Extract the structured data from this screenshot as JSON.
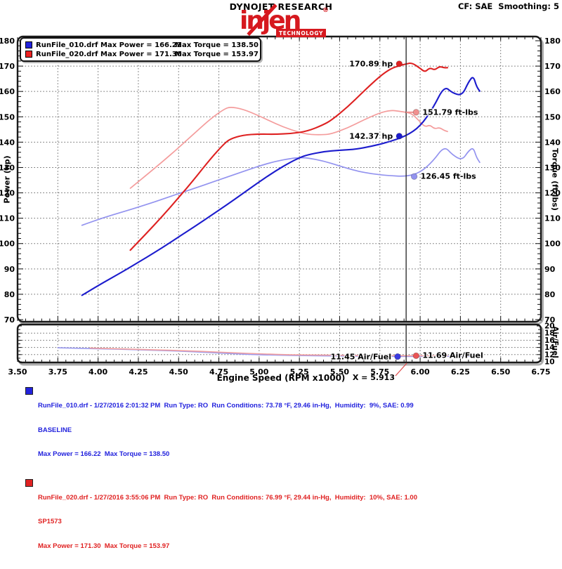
{
  "header": {
    "title": "DYNOJET RESEARCH",
    "correction": "CF: SAE  Smoothing: 5",
    "logo": {
      "word": "injen",
      "registered": "®",
      "sub": "TECHNOLOGY"
    }
  },
  "legend": {
    "rows": [
      {
        "file_power": "RunFile_010.drf Max Power = 166.22",
        "torque": "Max Torque = 138.50",
        "color": "#2222dd"
      },
      {
        "file_power": "RunFile_020.drf Max Power = 171.30",
        "torque": "Max Torque = 153.97",
        "color": "#ee2222"
      }
    ]
  },
  "axes": {
    "x_label": "Engine Speed (RPM x1000)",
    "y_left_label": "Power (hp)",
    "y_right_label": "Torque (ft-lbs)",
    "af_label": "Air/Fuel"
  },
  "cursor": {
    "label": "X = 5.913",
    "x": 5.913
  },
  "annotations": [
    {
      "text": "170.89 hp",
      "chart": "main",
      "rpm": 5.87,
      "value": 170.89,
      "side": "left",
      "color": "#de2121"
    },
    {
      "text": "151.79 ft-lbs",
      "chart": "main",
      "rpm": 5.975,
      "value": 151.79,
      "side": "right",
      "color": "#f0908f",
      "leader_from": 5.913
    },
    {
      "text": "142.37 hp",
      "chart": "main",
      "rpm": 5.87,
      "value": 142.37,
      "side": "left",
      "color": "#1c1ccd"
    },
    {
      "text": "126.45 ft-lbs",
      "chart": "main",
      "rpm": 5.963,
      "value": 126.45,
      "side": "right",
      "color": "#9393ef"
    },
    {
      "text": "11.45 Air/Fuel",
      "chart": "af",
      "rpm": 5.86,
      "value": 11.45,
      "side": "left",
      "color": "#3b3be0"
    },
    {
      "text": "11.69 Air/Fuel",
      "chart": "af",
      "rpm": 5.975,
      "value": 11.69,
      "side": "right",
      "color": "#e85555"
    }
  ],
  "chart_data": [
    {
      "type": "line",
      "panel": "main",
      "x_axis": {
        "label": "Engine Speed (RPM x1000)",
        "min": 3.5,
        "max": 6.75,
        "tick_step": 0.25,
        "ticks": [
          "3.50",
          "3.75",
          "4.00",
          "4.25",
          "4.50",
          "4.75",
          "5.00",
          "5.25",
          "5.50",
          "5.75",
          "6.00",
          "6.25",
          "6.50",
          "6.75"
        ]
      },
      "y_axis": {
        "left_label": "Power (hp)",
        "right_label": "Torque (ft-lbs)",
        "min": 70,
        "max": 180,
        "ticks": [
          "180",
          "170",
          "160",
          "150",
          "140",
          "130",
          "120",
          "110",
          "100",
          "90",
          "80",
          "70"
        ]
      },
      "grid": "dotted",
      "series": [
        {
          "name": "RunFile_010 Torque",
          "color": "#9393ef",
          "width": 1.7,
          "points": [
            [
              3.9,
              107.2
            ],
            [
              4.0,
              109.5
            ],
            [
              4.1,
              111.5
            ],
            [
              4.2,
              113.4
            ],
            [
              4.3,
              115.4
            ],
            [
              4.4,
              117.5
            ],
            [
              4.5,
              119.7
            ],
            [
              4.6,
              121.8
            ],
            [
              4.7,
              124.0
            ],
            [
              4.8,
              126.2
            ],
            [
              4.9,
              128.4
            ],
            [
              5.0,
              130.6
            ],
            [
              5.1,
              132.4
            ],
            [
              5.2,
              133.6
            ],
            [
              5.252,
              133.9
            ],
            [
              5.3,
              133.8
            ],
            [
              5.4,
              132.6
            ],
            [
              5.5,
              130.6
            ],
            [
              5.6,
              128.7
            ],
            [
              5.7,
              127.5
            ],
            [
              5.8,
              126.8
            ],
            [
              5.913,
              126.45
            ],
            [
              6.0,
              128.0
            ],
            [
              6.08,
              132.5
            ],
            [
              6.15,
              138.5
            ],
            [
              6.2,
              135.0
            ],
            [
              6.26,
              132.8
            ],
            [
              6.3,
              136.5
            ],
            [
              6.33,
              137.9
            ],
            [
              6.35,
              134.0
            ],
            [
              6.37,
              132.0
            ]
          ]
        },
        {
          "name": "RunFile_020 Torque",
          "color": "#f49c9c",
          "width": 1.7,
          "points": [
            [
              4.2,
              121.8
            ],
            [
              4.3,
              127.0
            ],
            [
              4.4,
              132.3
            ],
            [
              4.5,
              137.8
            ],
            [
              4.6,
              143.6
            ],
            [
              4.7,
              149.3
            ],
            [
              4.78,
              152.9
            ],
            [
              4.82,
              153.97
            ],
            [
              4.9,
              153.0
            ],
            [
              5.0,
              150.4
            ],
            [
              5.1,
              147.3
            ],
            [
              5.2,
              144.8
            ],
            [
              5.3,
              143.0
            ],
            [
              5.4,
              142.9
            ],
            [
              5.45,
              143.3
            ],
            [
              5.55,
              145.6
            ],
            [
              5.65,
              148.8
            ],
            [
              5.75,
              151.6
            ],
            [
              5.82,
              152.6
            ],
            [
              5.87,
              152.2
            ],
            [
              5.913,
              151.79
            ],
            [
              5.95,
              151.2
            ],
            [
              6.0,
              148.0
            ],
            [
              6.03,
              146.0
            ],
            [
              6.06,
              146.8
            ],
            [
              6.09,
              145.2
            ],
            [
              6.12,
              145.8
            ],
            [
              6.15,
              144.6
            ],
            [
              6.17,
              144.2
            ]
          ]
        },
        {
          "name": "RunFile_010 Power",
          "color": "#1c1ccd",
          "width": 2.1,
          "points": [
            [
              3.9,
              79.6
            ],
            [
              4.0,
              83.4
            ],
            [
              4.1,
              87.0
            ],
            [
              4.2,
              90.7
            ],
            [
              4.3,
              94.5
            ],
            [
              4.4,
              98.4
            ],
            [
              4.5,
              102.6
            ],
            [
              4.6,
              106.7
            ],
            [
              4.7,
              111.0
            ],
            [
              4.8,
              115.3
            ],
            [
              4.9,
              119.8
            ],
            [
              5.0,
              124.3
            ],
            [
              5.1,
              128.6
            ],
            [
              5.2,
              132.3
            ],
            [
              5.252,
              133.9
            ],
            [
              5.3,
              135.0
            ],
            [
              5.4,
              136.3
            ],
            [
              5.5,
              136.8
            ],
            [
              5.6,
              137.2
            ],
            [
              5.7,
              138.4
            ],
            [
              5.8,
              140.0
            ],
            [
              5.913,
              142.4
            ],
            [
              6.0,
              146.2
            ],
            [
              6.08,
              153.4
            ],
            [
              6.15,
              162.2
            ],
            [
              6.2,
              159.4
            ],
            [
              6.26,
              158.3
            ],
            [
              6.3,
              163.7
            ],
            [
              6.33,
              166.2
            ],
            [
              6.35,
              162.0
            ],
            [
              6.37,
              160.1
            ]
          ]
        },
        {
          "name": "RunFile_020 Power",
          "color": "#de2121",
          "width": 2.1,
          "points": [
            [
              4.2,
              97.4
            ],
            [
              4.3,
              104.0
            ],
            [
              4.4,
              110.8
            ],
            [
              4.5,
              118.1
            ],
            [
              4.6,
              125.6
            ],
            [
              4.7,
              133.6
            ],
            [
              4.78,
              139.2
            ],
            [
              4.82,
              141.3
            ],
            [
              4.9,
              142.8
            ],
            [
              5.0,
              143.2
            ],
            [
              5.1,
              143.1
            ],
            [
              5.2,
              143.4
            ],
            [
              5.3,
              144.3
            ],
            [
              5.4,
              146.9
            ],
            [
              5.45,
              148.7
            ],
            [
              5.55,
              153.9
            ],
            [
              5.65,
              160.1
            ],
            [
              5.75,
              166.0
            ],
            [
              5.82,
              169.1
            ],
            [
              5.87,
              170.1
            ],
            [
              5.913,
              170.89
            ],
            [
              5.95,
              171.3
            ],
            [
              6.0,
              169.1
            ],
            [
              6.03,
              167.6
            ],
            [
              6.06,
              169.4
            ],
            [
              6.09,
              168.4
            ],
            [
              6.12,
              169.9
            ],
            [
              6.15,
              169.3
            ],
            [
              6.17,
              169.4
            ]
          ]
        }
      ]
    },
    {
      "type": "line",
      "panel": "af",
      "y_axis": {
        "label": "Air/Fuel",
        "min": 10,
        "max": 20,
        "ticks": [
          "20",
          "18",
          "16",
          "14",
          "12",
          "10"
        ]
      },
      "grid": "dotted",
      "series": [
        {
          "name": "RunFile_010 Air/Fuel",
          "color": "#9a9af0",
          "width": 1.6,
          "points": [
            [
              3.75,
              13.9
            ],
            [
              4.0,
              13.65
            ],
            [
              4.25,
              13.35
            ],
            [
              4.5,
              13.0
            ],
            [
              4.7,
              12.55
            ],
            [
              4.9,
              12.1
            ],
            [
              5.1,
              11.85
            ],
            [
              5.3,
              11.7
            ],
            [
              5.5,
              11.6
            ],
            [
              5.7,
              11.5
            ],
            [
              5.913,
              11.45
            ],
            [
              6.1,
              11.5
            ],
            [
              6.25,
              11.55
            ],
            [
              6.37,
              11.5
            ]
          ]
        },
        {
          "name": "RunFile_020 Air/Fuel",
          "color": "#f2a0a0",
          "width": 1.6,
          "points": [
            [
              3.95,
              13.85
            ],
            [
              4.25,
              13.45
            ],
            [
              4.5,
              13.15
            ],
            [
              4.75,
              12.7
            ],
            [
              5.0,
              12.2
            ],
            [
              5.2,
              11.95
            ],
            [
              5.4,
              11.85
            ],
            [
              5.6,
              11.78
            ],
            [
              5.913,
              11.69
            ],
            [
              6.0,
              11.68
            ],
            [
              6.17,
              11.7
            ]
          ]
        }
      ]
    }
  ],
  "footer": {
    "runs": [
      {
        "color": "#2222dd",
        "theme": "run-blue",
        "line1": "RunFile_010.drf - 1/27/2016 2:01:32 PM  Run Type: RO  Run Conditions: 73.78 °F, 29.46 in-Hg,  Humidity:  9%, SAE: 0.99",
        "line2": "BASELINE",
        "line3": "Max Power = 166.22  Max Torque = 138.50"
      },
      {
        "color": "#e02222",
        "theme": "run-red",
        "line1": "RunFile_020.drf - 1/27/2016 3:55:06 PM  Run Type: RO  Run Conditions: 76.99 °F, 29.44 in-Hg,  Humidity:  10%, SAE: 1.00",
        "line2": "SP1573",
        "line3": "Max Power = 171.30  Max Torque = 153.97"
      }
    ]
  }
}
